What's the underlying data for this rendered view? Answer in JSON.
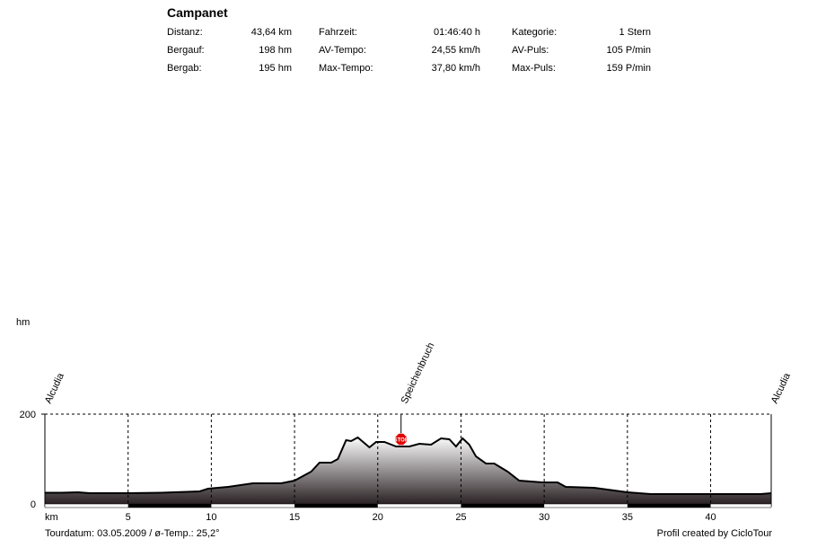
{
  "header": {
    "title": "Campanet",
    "stats": [
      [
        {
          "label": "Distanz:",
          "value": "43,64 km"
        },
        {
          "label": "Fahrzeit:",
          "value": "01:46:40 h"
        },
        {
          "label": "Kategorie:",
          "value": "1 Stern"
        }
      ],
      [
        {
          "label": "Bergauf:",
          "value": "198 hm"
        },
        {
          "label": "AV-Tempo:",
          "value": "24,55 km/h"
        },
        {
          "label": "AV-Puls:",
          "value": "105 P/min"
        }
      ],
      [
        {
          "label": "Bergab:",
          "value": "195 hm"
        },
        {
          "label": "Max-Tempo:",
          "value": "37,80 km/h"
        },
        {
          "label": "Max-Puls:",
          "value": "159 P/min"
        }
      ]
    ]
  },
  "footer": {
    "left": "Tourdatum: 03.05.2009  /  ø-Temp.: 25,2°",
    "right": "Profil created by CicloTour"
  },
  "chart_data": {
    "type": "area",
    "title": "Campanet",
    "xlabel": "km",
    "ylabel": "hm",
    "xlim": [
      0,
      43.64
    ],
    "ylim": [
      0,
      200
    ],
    "xticks": [
      5,
      10,
      15,
      20,
      25,
      30,
      35,
      40
    ],
    "yticks": [
      0,
      200
    ],
    "grid": true,
    "points": [
      [
        0,
        25
      ],
      [
        1,
        25
      ],
      [
        2,
        26
      ],
      [
        2.7,
        24
      ],
      [
        5,
        24
      ],
      [
        7,
        25
      ],
      [
        9.3,
        28
      ],
      [
        9.8,
        34
      ],
      [
        11,
        38
      ],
      [
        12.5,
        46
      ],
      [
        14.2,
        46
      ],
      [
        15,
        52
      ],
      [
        16,
        72
      ],
      [
        16.5,
        92
      ],
      [
        17.2,
        92
      ],
      [
        17.6,
        100
      ],
      [
        18.1,
        142
      ],
      [
        18.4,
        140
      ],
      [
        18.8,
        148
      ],
      [
        19.5,
        126
      ],
      [
        19.9,
        138
      ],
      [
        20.4,
        138
      ],
      [
        21.1,
        128
      ],
      [
        21.9,
        128
      ],
      [
        22.5,
        134
      ],
      [
        23.2,
        132
      ],
      [
        23.8,
        146
      ],
      [
        24.3,
        144
      ],
      [
        24.7,
        128
      ],
      [
        25.1,
        146
      ],
      [
        25.5,
        132
      ],
      [
        25.9,
        106
      ],
      [
        26.5,
        90
      ],
      [
        27,
        90
      ],
      [
        27.8,
        72
      ],
      [
        28.5,
        52
      ],
      [
        29.9,
        48
      ],
      [
        30.8,
        48
      ],
      [
        31.3,
        38
      ],
      [
        33,
        36
      ],
      [
        35,
        26
      ],
      [
        36.4,
        22
      ],
      [
        40,
        22
      ],
      [
        43,
        22
      ],
      [
        43.64,
        24
      ]
    ],
    "waypoints": [
      {
        "name": "Alcudia",
        "km": 0
      },
      {
        "name": "Speichenbruch",
        "km": 21.4
      },
      {
        "name": "Alcudia",
        "km": 43.64
      }
    ],
    "stop_marker": {
      "km": 21.4,
      "label": "STOP"
    }
  },
  "colors": {
    "fill_top": "#ffffff",
    "fill_bottom": "#2a2224",
    "line": "#000000",
    "stop": "#e00000"
  }
}
